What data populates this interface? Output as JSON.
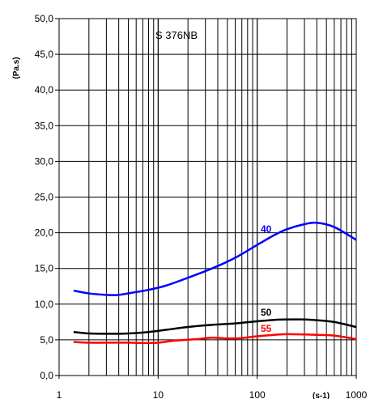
{
  "chart_data": {
    "type": "line",
    "title": "S 376NB",
    "xlabel": "(s-1)",
    "ylabel": "(Pa.s)",
    "xscale": "log",
    "xlim": [
      1,
      1000
    ],
    "ylim": [
      0,
      50
    ],
    "grid": true,
    "x_tick_labels": [
      "1",
      "10",
      "100",
      "1000"
    ],
    "y_tick_labels": [
      "0,0",
      "5,0",
      "10,0",
      "15,0",
      "20,0",
      "25,0",
      "30,0",
      "35,0",
      "40,0",
      "45,0",
      "50,0"
    ],
    "series": [
      {
        "name": "40",
        "color": "#0000ff",
        "x": [
          1.4,
          2,
          3,
          4,
          6,
          8,
          12,
          20,
          35,
          60,
          100,
          150,
          200,
          300,
          400,
          600,
          1000
        ],
        "y": [
          11.9,
          11.5,
          11.3,
          11.3,
          11.7,
          12.0,
          12.6,
          13.7,
          15.0,
          16.5,
          18.3,
          19.7,
          20.5,
          21.2,
          21.4,
          20.8,
          19.0
        ]
      },
      {
        "name": "50",
        "color": "#000000",
        "x": [
          1.4,
          2,
          3,
          5,
          8,
          12,
          20,
          35,
          60,
          100,
          150,
          200,
          300,
          400,
          600,
          1000
        ],
        "y": [
          6.1,
          5.9,
          5.85,
          5.9,
          6.1,
          6.4,
          6.8,
          7.1,
          7.3,
          7.6,
          7.8,
          7.85,
          7.85,
          7.75,
          7.5,
          6.8
        ]
      },
      {
        "name": "55",
        "color": "#ff0000",
        "x": [
          1.4,
          2,
          3,
          5,
          7,
          10,
          15,
          25,
          35,
          50,
          70,
          100,
          150,
          200,
          300,
          400,
          600,
          1000
        ],
        "y": [
          4.7,
          4.6,
          4.6,
          4.6,
          4.55,
          4.6,
          4.9,
          5.1,
          5.3,
          5.2,
          5.25,
          5.5,
          5.7,
          5.8,
          5.75,
          5.7,
          5.6,
          5.1
        ]
      }
    ]
  }
}
